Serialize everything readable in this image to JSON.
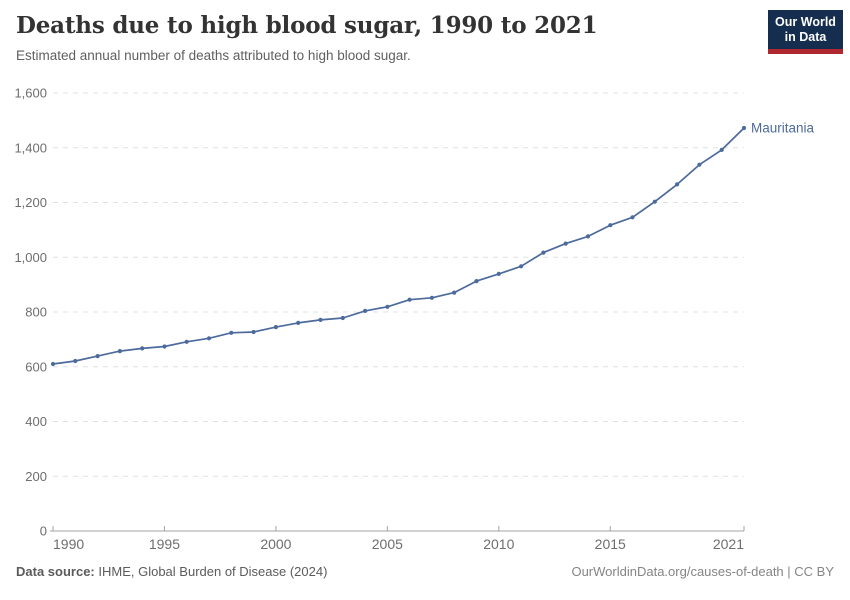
{
  "chart_data": {
    "type": "line",
    "title": "Deaths due to high blood sugar, 1990 to 2021",
    "subtitle": "Estimated annual number of deaths attributed to high blood sugar.",
    "x": [
      1990,
      1991,
      1992,
      1993,
      1994,
      1995,
      1996,
      1997,
      1998,
      1999,
      2000,
      2001,
      2002,
      2003,
      2004,
      2005,
      2006,
      2007,
      2008,
      2009,
      2010,
      2011,
      2012,
      2013,
      2014,
      2015,
      2016,
      2017,
      2018,
      2019,
      2020,
      2021
    ],
    "series": [
      {
        "name": "Mauritania",
        "color": "#4c6a9c",
        "values": [
          610,
          621,
          639,
          657,
          667,
          674,
          691,
          704,
          724,
          727,
          745,
          760,
          771,
          778,
          804,
          819,
          845,
          852,
          871,
          913,
          939,
          967,
          1017,
          1050,
          1076,
          1117,
          1146,
          1203,
          1266,
          1338,
          1392,
          1472
        ]
      }
    ],
    "xlabel": "",
    "ylabel": "",
    "ylim": [
      0,
      1600
    ],
    "yticks": [
      0,
      200,
      400,
      600,
      800,
      1000,
      1200,
      1400,
      1600
    ],
    "xticks": [
      1990,
      1995,
      2000,
      2005,
      2010,
      2015,
      2021
    ],
    "grid": "horizontal-dashed",
    "legend": "end-of-line-label"
  },
  "logo": {
    "line1": "Our World",
    "line2": "in Data",
    "bg": "#152e4f",
    "accent": "#b0282f"
  },
  "footer": {
    "datasource_label": "Data source:",
    "datasource_text": "IHME, Global Burden of Disease (2024)",
    "link": "OurWorldinData.org/causes-of-death | CC BY"
  }
}
